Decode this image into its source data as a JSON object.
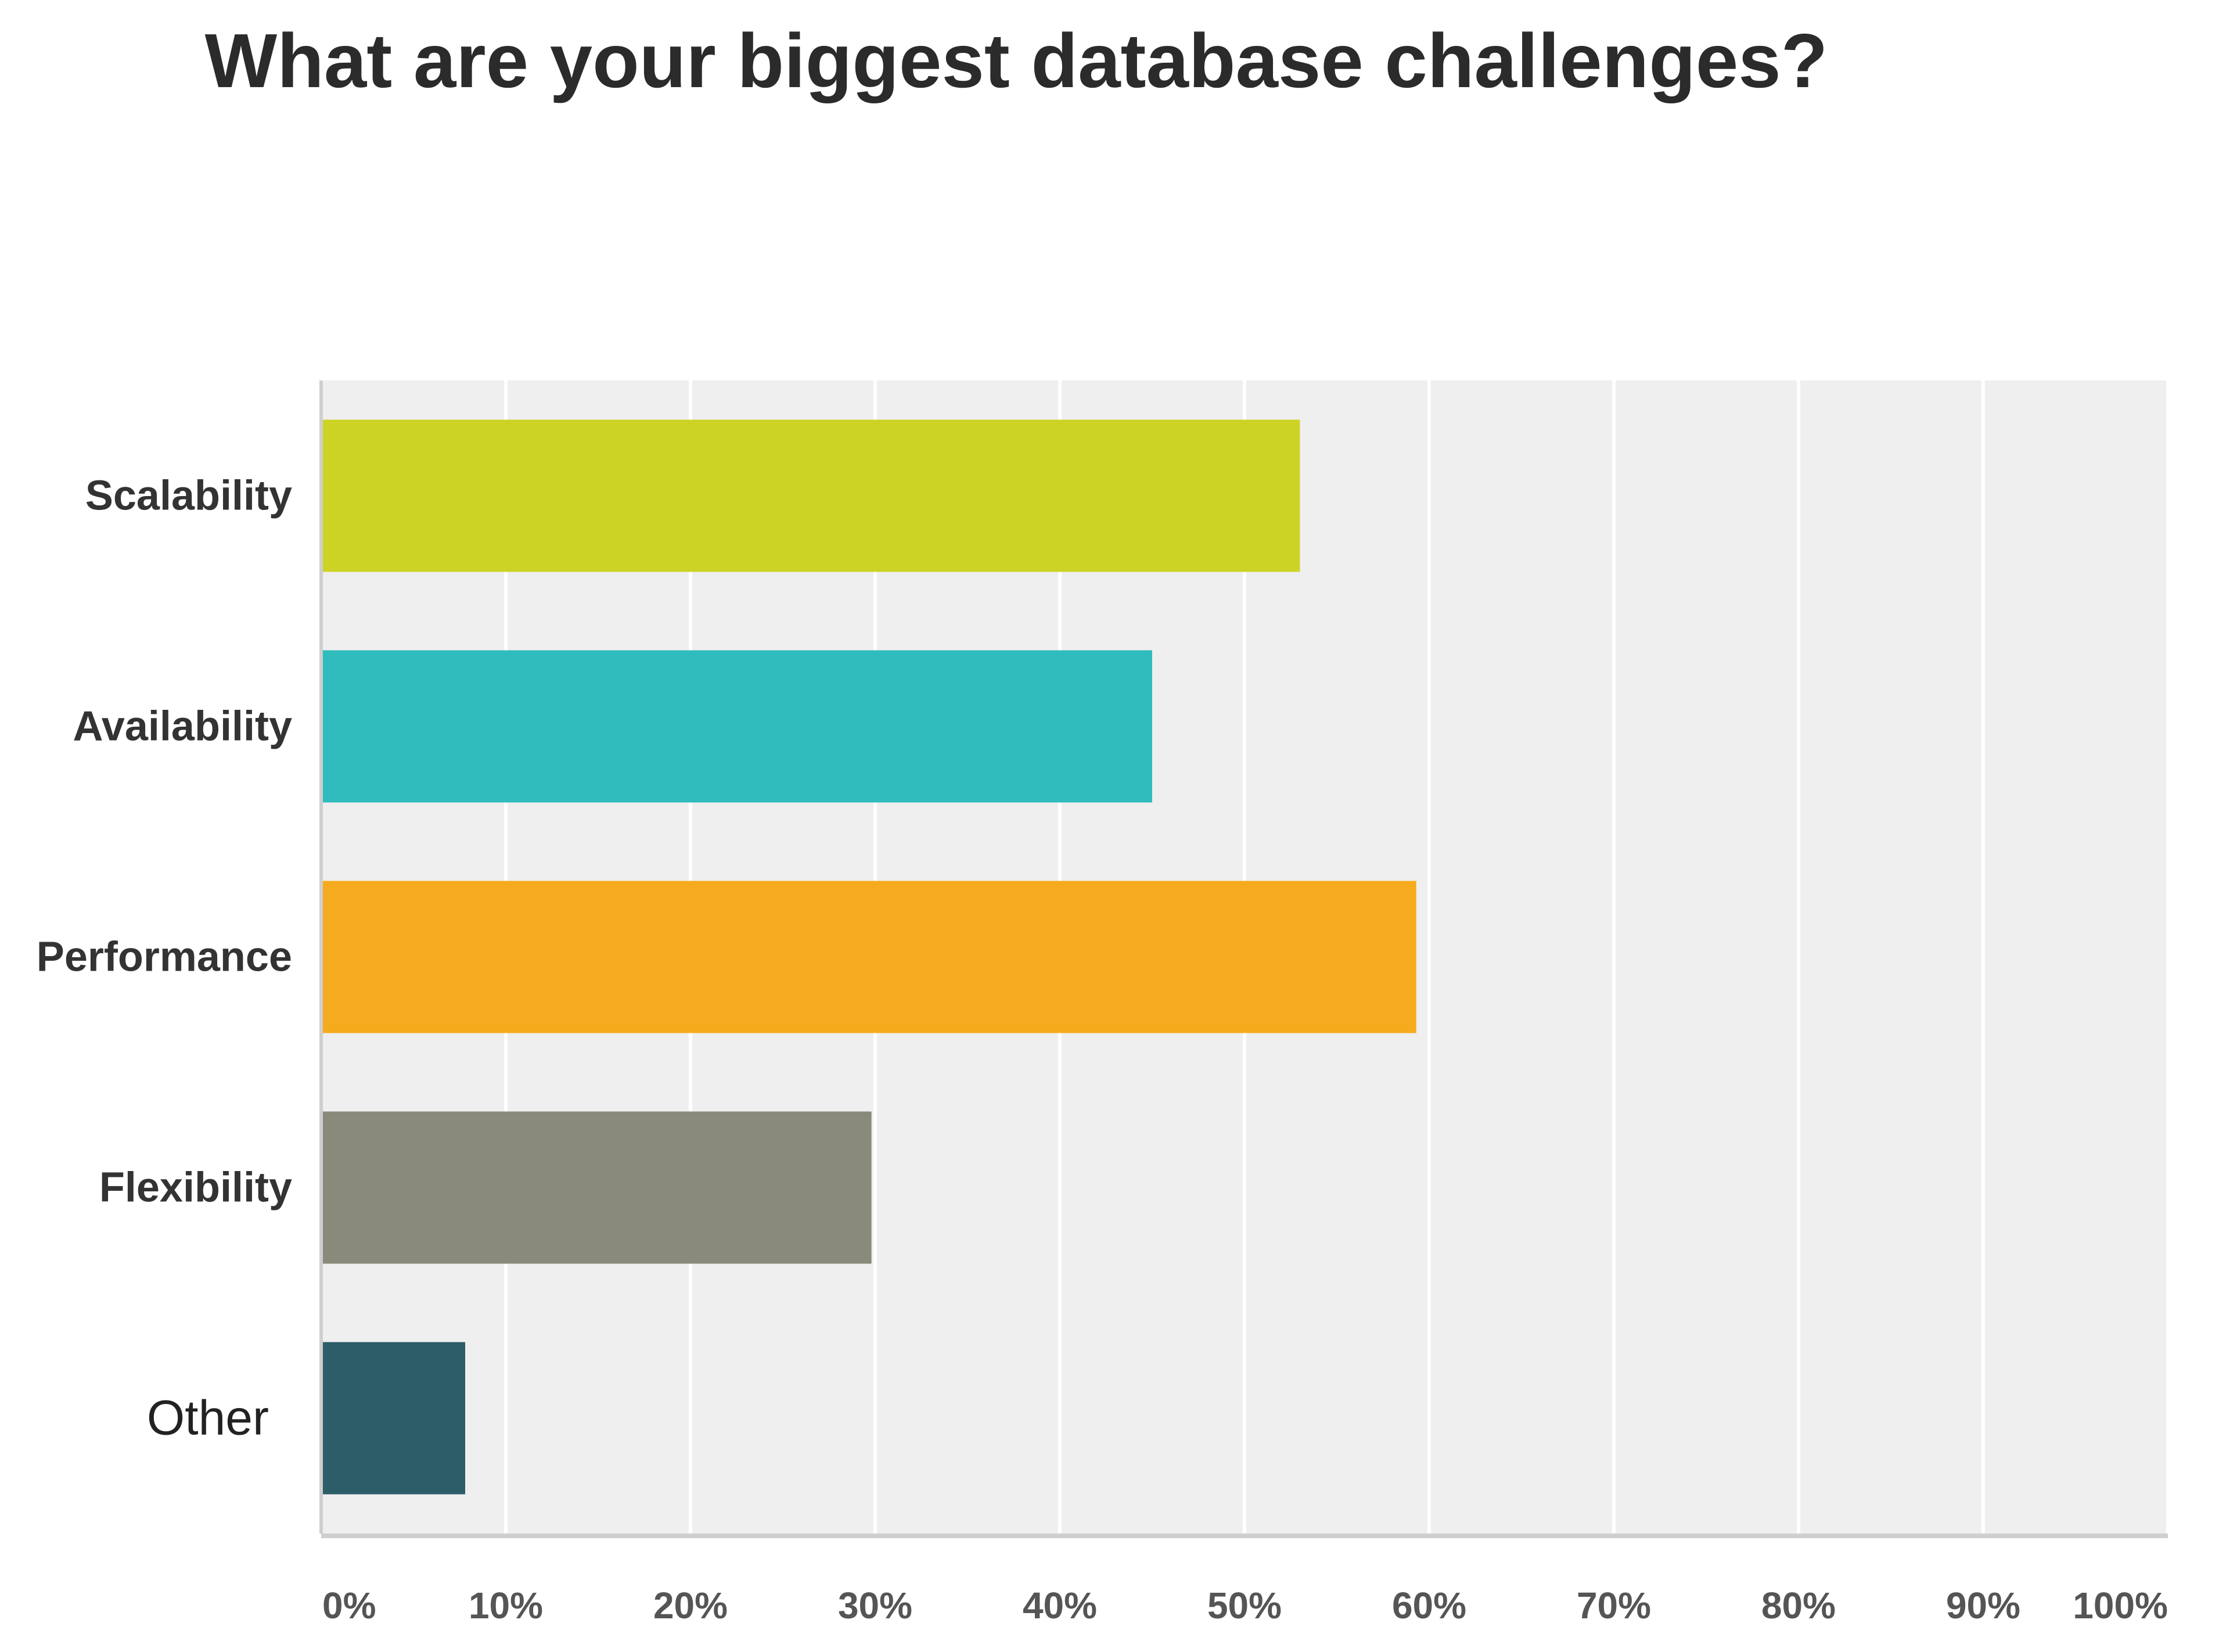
{
  "chart_data": {
    "type": "bar",
    "orientation": "horizontal",
    "title": "What are your biggest database challenges?",
    "categories": [
      "Scalability",
      "Availability",
      "Performance",
      "Flexibility",
      "Other"
    ],
    "values": [
      53,
      45,
      59.3,
      29.8,
      7.8
    ],
    "colors": [
      "#cdd324",
      "#30bbbd",
      "#f5ab1d",
      "#8a8a7a",
      "#2c5d69"
    ],
    "xlim": [
      0,
      100
    ],
    "ticks": [
      "0%",
      "10%",
      "20%",
      "30%",
      "40%",
      "50%",
      "60%",
      "70%",
      "80%",
      "90%",
      "100%"
    ],
    "grid": true,
    "plot_background": "#efefef",
    "gridline_color": "#ffffff"
  }
}
